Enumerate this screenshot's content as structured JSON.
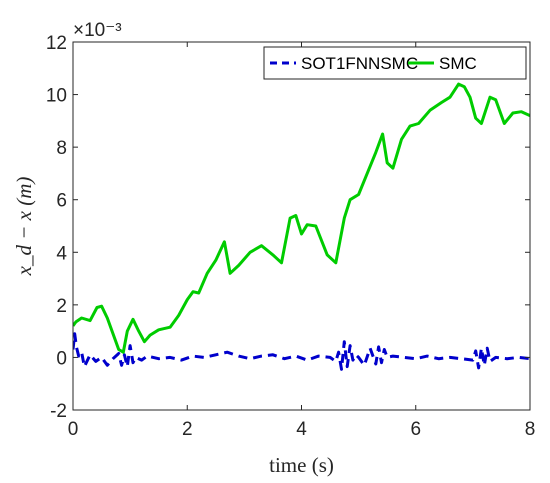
{
  "chart_data": {
    "type": "line",
    "xlabel": "time (s)",
    "ylabel": "x_d − x (m)",
    "y_exponent_label": "×10⁻³",
    "xlim": [
      0,
      8
    ],
    "ylim": [
      -2,
      12
    ],
    "x_ticks": [
      0,
      2,
      4,
      6,
      8
    ],
    "y_ticks": [
      -2,
      0,
      2,
      4,
      6,
      8,
      10,
      12
    ],
    "y_unit_scale": 0.001,
    "grid": false,
    "legend_position": "top-right",
    "series": [
      {
        "name": "SOT1FNNSMC",
        "color": "#0000cc",
        "style": "dashed",
        "x": [
          0,
          0.03,
          0.06,
          0.1,
          0.15,
          0.2,
          0.3,
          0.4,
          0.5,
          0.6,
          0.7,
          0.8,
          0.85,
          0.9,
          0.95,
          1.0,
          1.05,
          1.1,
          1.2,
          1.3,
          1.5,
          1.7,
          1.9,
          2.1,
          2.3,
          2.5,
          2.7,
          2.9,
          3.1,
          3.3,
          3.5,
          3.7,
          3.9,
          4.1,
          4.3,
          4.5,
          4.6,
          4.65,
          4.7,
          4.75,
          4.8,
          4.85,
          4.9,
          4.95,
          5.0,
          5.1,
          5.2,
          5.3,
          5.35,
          5.4,
          5.45,
          5.5,
          5.6,
          5.8,
          6.0,
          6.2,
          6.4,
          6.6,
          6.8,
          7.0,
          7.05,
          7.1,
          7.15,
          7.2,
          7.25,
          7.3,
          7.4,
          7.6,
          7.8,
          8.0
        ],
        "values": [
          0.3,
          0.9,
          0.4,
          0.05,
          0.2,
          -0.35,
          0.1,
          -0.15,
          0.0,
          -0.3,
          -0.05,
          0.15,
          -0.3,
          0.1,
          -0.35,
          0.45,
          -0.2,
          0.0,
          -0.1,
          0.05,
          -0.05,
          0.0,
          -0.1,
          0.05,
          0.0,
          0.1,
          0.2,
          0.05,
          -0.05,
          0.05,
          0.1,
          -0.05,
          0.05,
          -0.1,
          0.05,
          0.0,
          -0.15,
          0.2,
          -0.45,
          0.6,
          -0.35,
          0.45,
          -0.1,
          0.1,
          0.0,
          -0.3,
          0.35,
          -0.25,
          0.4,
          -0.2,
          0.3,
          0.0,
          0.05,
          0.0,
          -0.05,
          0.05,
          -0.05,
          0.0,
          -0.05,
          -0.1,
          0.25,
          -0.4,
          0.35,
          -0.3,
          0.35,
          -0.15,
          0.0,
          -0.05,
          0.0,
          -0.05
        ]
      },
      {
        "name": "SMC",
        "color": "#00cc00",
        "style": "solid",
        "x": [
          0,
          0.05,
          0.15,
          0.3,
          0.42,
          0.5,
          0.6,
          0.7,
          0.8,
          0.88,
          0.95,
          1.05,
          1.15,
          1.25,
          1.35,
          1.5,
          1.7,
          1.85,
          2.0,
          2.1,
          2.2,
          2.35,
          2.5,
          2.65,
          2.75,
          2.9,
          3.1,
          3.3,
          3.5,
          3.65,
          3.8,
          3.9,
          4.0,
          4.1,
          4.25,
          4.45,
          4.6,
          4.75,
          4.85,
          5.0,
          5.15,
          5.3,
          5.42,
          5.5,
          5.6,
          5.75,
          5.9,
          6.05,
          6.25,
          6.45,
          6.6,
          6.75,
          6.85,
          6.95,
          7.05,
          7.15,
          7.3,
          7.4,
          7.55,
          7.7,
          7.85,
          8.0
        ],
        "values": [
          1.2,
          1.35,
          1.5,
          1.4,
          1.9,
          1.95,
          1.5,
          0.9,
          0.3,
          0.2,
          1.0,
          1.45,
          1.0,
          0.6,
          0.85,
          1.05,
          1.15,
          1.6,
          2.2,
          2.5,
          2.45,
          3.2,
          3.7,
          4.4,
          3.2,
          3.5,
          4.0,
          4.25,
          3.9,
          3.6,
          5.3,
          5.4,
          4.7,
          5.05,
          5.0,
          3.9,
          3.6,
          5.3,
          6.0,
          6.2,
          7.0,
          7.8,
          8.5,
          7.4,
          7.2,
          8.3,
          8.8,
          8.9,
          9.4,
          9.7,
          9.9,
          10.4,
          10.3,
          9.9,
          9.1,
          8.9,
          9.9,
          9.8,
          8.9,
          9.3,
          9.35,
          9.2
        ]
      }
    ]
  }
}
